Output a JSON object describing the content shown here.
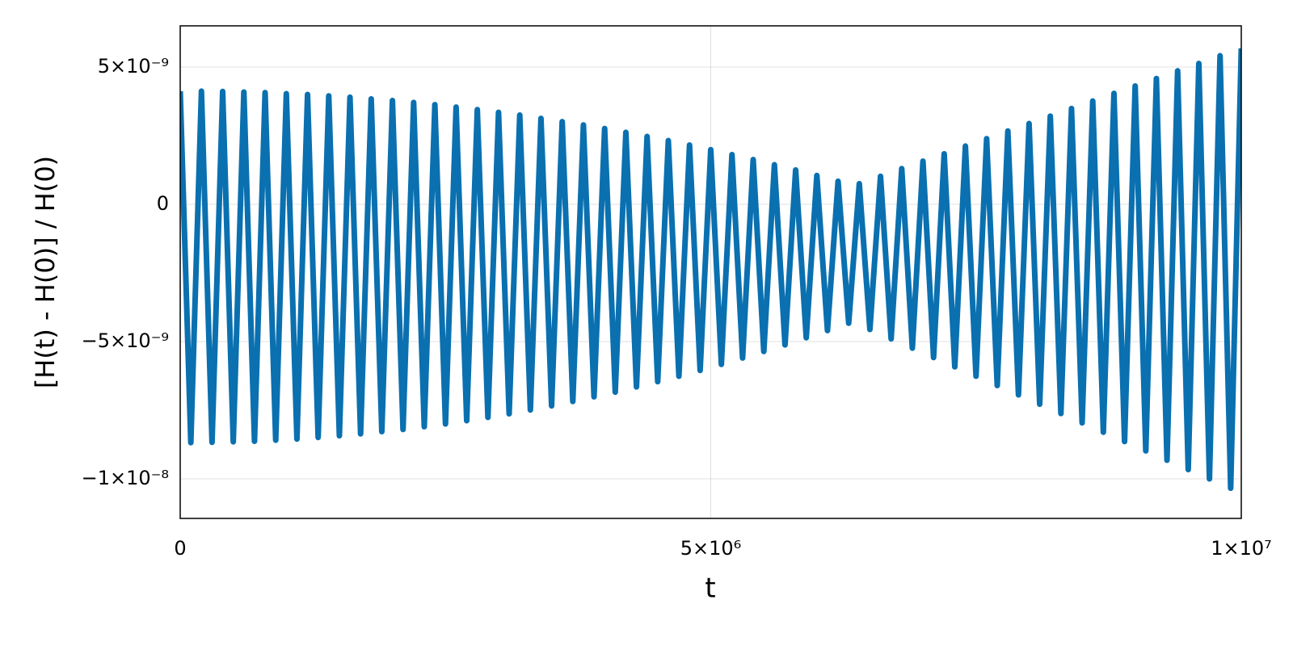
{
  "chart_data": {
    "type": "line",
    "x_label": "t",
    "y_label": "[H(t) - H(0)] / H(0)",
    "xlim": [
      0,
      10000000
    ],
    "ylim": [
      -1.144e-08,
      6.5e-09
    ],
    "xticks": [
      0,
      {
        "value": 5000000,
        "label": "5×10⁶"
      },
      {
        "value": 10000000,
        "label": "1×10⁷"
      }
    ],
    "yticks": [
      {
        "value": 5e-09,
        "label": "5×10⁻⁹"
      },
      0,
      {
        "value": -5e-09,
        "label": "−5×10⁻⁹"
      },
      {
        "value": -1e-08,
        "label": "−1×10⁻⁸"
      }
    ],
    "grid": true,
    "x": [
      0,
      100000,
      200000,
      300000,
      400000,
      500000,
      600000,
      700000,
      800000,
      900000,
      1000000,
      1100000,
      1200000,
      1300000,
      1400000,
      1500000,
      1600000,
      1700000,
      1800000,
      1900000,
      2000000,
      2100000,
      2200000,
      2300000,
      2400000,
      2500000,
      2600000,
      2700000,
      2800000,
      2900000,
      3000000,
      3100000,
      3200000,
      3300000,
      3400000,
      3500000,
      3600000,
      3700000,
      3800000,
      3900000,
      4000000,
      4100000,
      4200000,
      4300000,
      4400000,
      4500000,
      4600000,
      4700000,
      4800000,
      4900000,
      5000000,
      5100000,
      5200000,
      5300000,
      5400000,
      5500000,
      5600000,
      5700000,
      5800000,
      5900000,
      6000000,
      6100000,
      6200000,
      6300000,
      6400000,
      6500000,
      6600000,
      6700000,
      6800000,
      6900000,
      7000000,
      7100000,
      7200000,
      7300000,
      7400000,
      7500000,
      7600000,
      7700000,
      7800000,
      7900000,
      8000000,
      8100000,
      8200000,
      8300000,
      8400000,
      8500000,
      8600000,
      8700000,
      8800000,
      8900000,
      9000000,
      9100000,
      9200000,
      9300000,
      9400000,
      9500000,
      9600000,
      9700000,
      9800000,
      9900000,
      10000000
    ],
    "series": [
      {
        "color": "#0a70b0",
        "values": [
          4.12e-09,
          -8.68e-09,
          4.12e-09,
          -8.67e-09,
          4.11e-09,
          -8.65e-09,
          4.09e-09,
          -8.63e-09,
          4.07e-09,
          -8.59e-09,
          4.03e-09,
          -8.55e-09,
          4e-09,
          -8.49e-09,
          3.95e-09,
          -8.43e-09,
          3.9e-09,
          -8.36e-09,
          3.84e-09,
          -8.28e-09,
          3.78e-09,
          -8.2e-09,
          3.71e-09,
          -8.1e-09,
          3.63e-09,
          -8e-09,
          3.54e-09,
          -7.88e-09,
          3.45e-09,
          -7.76e-09,
          3.35e-09,
          -7.63e-09,
          3.25e-09,
          -7.49e-09,
          3.13e-09,
          -7.34e-09,
          3.01e-09,
          -7.18e-09,
          2.89e-09,
          -7.01e-09,
          2.76e-09,
          -6.84e-09,
          2.62e-09,
          -6.65e-09,
          2.47e-09,
          -6.46e-09,
          2.32e-09,
          -6.26e-09,
          2.16e-09,
          -6.05e-09,
          1.99e-09,
          -5.83e-09,
          1.81e-09,
          -5.6e-09,
          1.63e-09,
          -5.36e-09,
          1.44e-09,
          -5.12e-09,
          1.25e-09,
          -4.86e-09,
          1.05e-09,
          -4.6e-09,
          8.4e-10,
          -4.33e-09,
          7.5e-10,
          -4.56e-09,
          1.02e-09,
          -4.9e-09,
          1.3e-09,
          -5.24e-09,
          1.57e-09,
          -5.58e-09,
          1.84e-09,
          -5.92e-09,
          2.12e-09,
          -6.26e-09,
          2.39e-09,
          -6.6e-09,
          2.67e-09,
          -6.94e-09,
          2.94e-09,
          -7.28e-09,
          3.21e-09,
          -7.62e-09,
          3.49e-09,
          -7.96e-09,
          3.76e-09,
          -8.3e-09,
          4.04e-09,
          -8.64e-09,
          4.31e-09,
          -8.98e-09,
          4.58e-09,
          -9.32e-09,
          4.86e-09,
          -9.66e-09,
          5.13e-09,
          -1e-08,
          5.41e-09,
          -1.034e-08,
          5.68e-09
        ]
      }
    ]
  }
}
